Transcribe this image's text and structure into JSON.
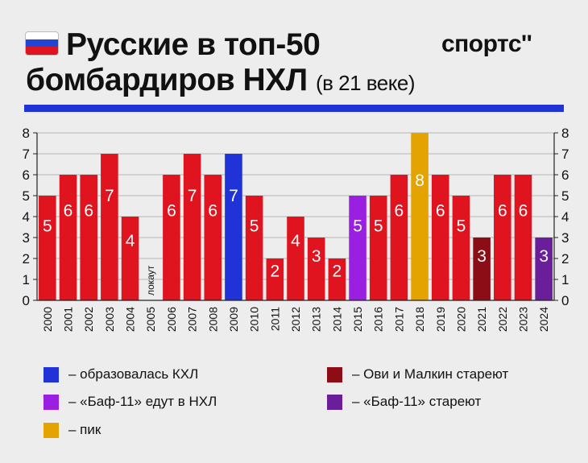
{
  "header": {
    "flag_colors": [
      "#ffffff",
      "#1f44d6",
      "#e0141f"
    ],
    "title_line1": "Русские в топ-50",
    "title_line2": "бомбардиров НХЛ",
    "title_suffix": "(в 21 веке)",
    "logo": "спортс''",
    "rule_color": "#1f33d6"
  },
  "chart_data": {
    "type": "bar",
    "categories": [
      "2000",
      "2001",
      "2002",
      "2003",
      "2004",
      "2005",
      "2006",
      "2007",
      "2008",
      "2009",
      "2010",
      "2011",
      "2012",
      "2013",
      "2014",
      "2015",
      "2016",
      "2017",
      "2018",
      "2019",
      "2020",
      "2021",
      "2022",
      "2023",
      "2024"
    ],
    "values": [
      5,
      6,
      6,
      7,
      4,
      0,
      6,
      7,
      6,
      7,
      5,
      2,
      4,
      3,
      2,
      5,
      5,
      6,
      8,
      6,
      5,
      3,
      6,
      6,
      3
    ],
    "bar_colors": [
      "#e0141f",
      "#e0141f",
      "#e0141f",
      "#e0141f",
      "#e0141f",
      "#e0141f",
      "#e0141f",
      "#e0141f",
      "#e0141f",
      "#1f33d6",
      "#e0141f",
      "#e0141f",
      "#e0141f",
      "#e0141f",
      "#e0141f",
      "#9b1fe0",
      "#e0141f",
      "#e0141f",
      "#e4a300",
      "#e0141f",
      "#e0141f",
      "#8c0d16",
      "#e0141f",
      "#e0141f",
      "#6a1e9a"
    ],
    "data_labels": [
      "5",
      "6",
      "6",
      "7",
      "4",
      "",
      "6",
      "7",
      "6",
      "7",
      "5",
      "2",
      "4",
      "3",
      "2",
      "5",
      "5",
      "6",
      "8",
      "6",
      "5",
      "3",
      "6",
      "6",
      "3"
    ],
    "lockout_index": 5,
    "lockout_label": "локаут",
    "ylim": [
      0,
      8
    ],
    "yticks": [
      "0",
      "1",
      "2",
      "3",
      "4",
      "5",
      "6",
      "7",
      "8"
    ],
    "grid": true,
    "axes_both_sides": true
  },
  "legend": [
    {
      "color": "#1f33d6",
      "label": "– образовалась КХЛ"
    },
    {
      "color": "#8c0d16",
      "label": "– Ови и Малкин стареют"
    },
    {
      "color": "#9b1fe0",
      "label": "– «Баф-11» едут в НХЛ"
    },
    {
      "color": "#6a1e9a",
      "label": "– «Баф-11» стареют"
    },
    {
      "color": "#e4a300",
      "label": "– пик"
    }
  ]
}
